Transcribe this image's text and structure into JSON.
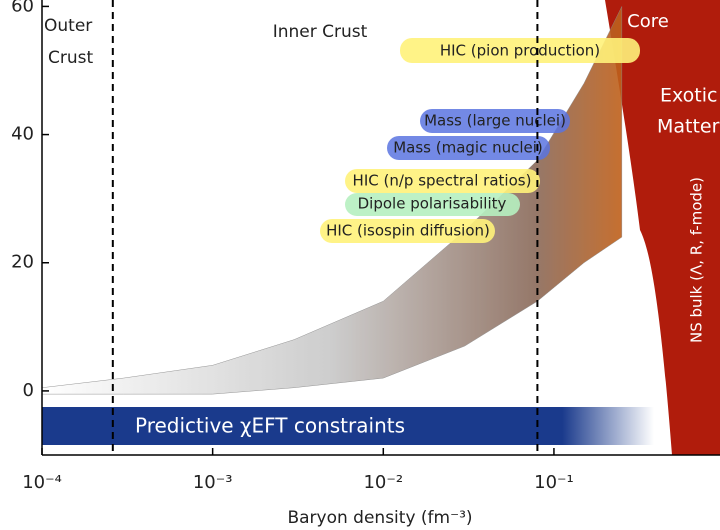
{
  "chart_data": {
    "type": "band",
    "x_label": "Baryon density (fm⁻³)",
    "xlim": [
      0.0001,
      0.94
    ],
    "ylim": [
      -10,
      61
    ],
    "log_x": true,
    "xticks": [
      {
        "value": 0.0001,
        "label": "10⁻⁴"
      },
      {
        "value": 0.001,
        "label": "10⁻³"
      },
      {
        "value": 0.01,
        "label": "10⁻²"
      },
      {
        "value": 0.1,
        "label": "10⁻¹"
      }
    ],
    "yticks": [
      0,
      20,
      40,
      60
    ],
    "band": {
      "x": [
        0.0001,
        0.0003,
        0.001,
        0.003,
        0.01,
        0.03,
        0.08,
        0.15,
        0.25
      ],
      "upper": [
        0.5,
        2,
        4,
        8,
        14,
        25,
        36,
        48,
        60
      ],
      "lower": [
        -0.5,
        -0.5,
        -0.5,
        0.5,
        2,
        7,
        14,
        20,
        24
      ],
      "color": "#8a8a8a"
    },
    "boundaries": [
      0.00026,
      0.08
    ],
    "regions": [
      "Outer",
      "Crust",
      "Inner Crust",
      "Core",
      "Exotic",
      "Matter"
    ],
    "annotations": [
      "HIC (pion production)",
      "Mass (large nuclei)",
      "Mass (magic nuclei)",
      "HIC (n/p spectral ratios)",
      "Dipole polarisability",
      "HIC (isospin diffusion)",
      "NS bulk (Λ, R, f-mode)",
      "Predictive  χEFT constraints"
    ]
  }
}
